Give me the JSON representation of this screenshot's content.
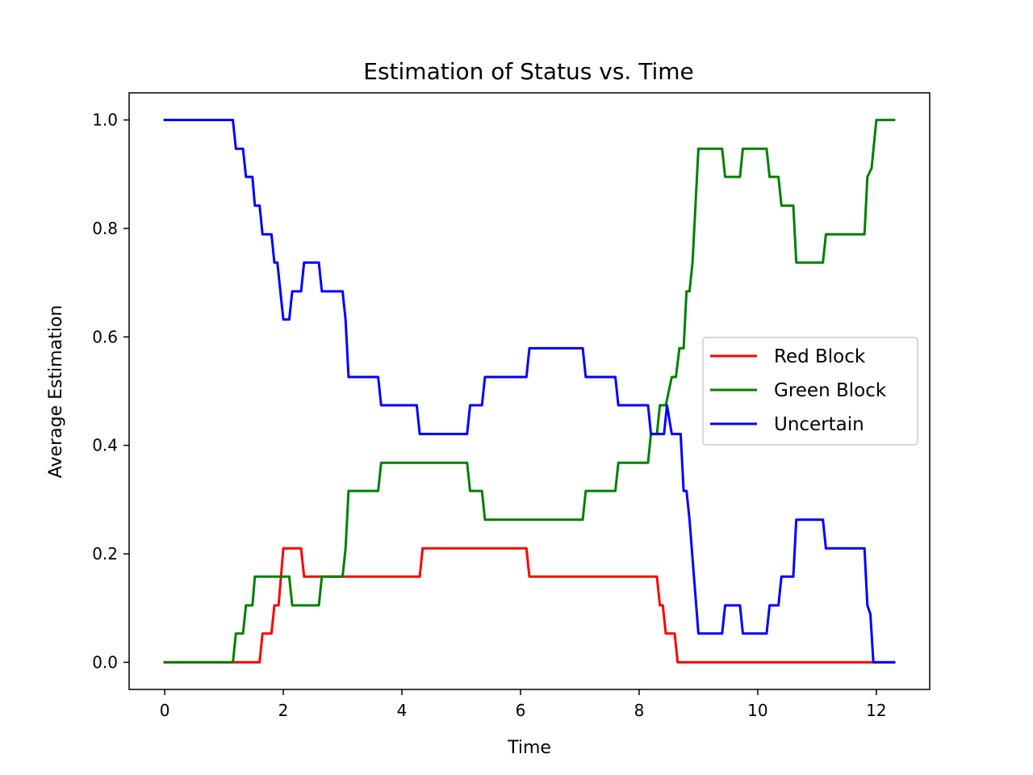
{
  "chart_data": {
    "type": "line",
    "title": "Estimation of Status vs. Time",
    "xlabel": "Time",
    "ylabel": "Average Estimation",
    "xlim": [
      -0.6,
      12.9
    ],
    "ylim": [
      -0.05,
      1.05
    ],
    "xticks": [
      0,
      2,
      4,
      6,
      8,
      10,
      12
    ],
    "yticks": [
      0.0,
      0.2,
      0.4,
      0.6,
      0.8,
      1.0
    ],
    "xtick_labels": [
      "0",
      "2",
      "4",
      "6",
      "8",
      "10",
      "12"
    ],
    "ytick_labels": [
      "0.0",
      "0.2",
      "0.4",
      "0.6",
      "0.8",
      "1.0"
    ],
    "grid": false,
    "legend_position": "center-right",
    "series": [
      {
        "name": "Red Block",
        "color": "#ff0000",
        "points": [
          [
            0,
            0
          ],
          [
            1.6,
            0
          ],
          [
            1.65,
            0.053
          ],
          [
            1.8,
            0.053
          ],
          [
            1.85,
            0.105
          ],
          [
            1.92,
            0.105
          ],
          [
            2.0,
            0.21
          ],
          [
            2.3,
            0.21
          ],
          [
            2.35,
            0.158
          ],
          [
            4.3,
            0.158
          ],
          [
            4.35,
            0.21
          ],
          [
            6.1,
            0.21
          ],
          [
            6.15,
            0.158
          ],
          [
            8.3,
            0.158
          ],
          [
            8.35,
            0.105
          ],
          [
            8.4,
            0.105
          ],
          [
            8.45,
            0.053
          ],
          [
            8.6,
            0.053
          ],
          [
            8.65,
            0
          ],
          [
            12.3,
            0
          ]
        ]
      },
      {
        "name": "Green Block",
        "color": "#008000",
        "points": [
          [
            0,
            0
          ],
          [
            1.15,
            0
          ],
          [
            1.2,
            0.053
          ],
          [
            1.32,
            0.053
          ],
          [
            1.37,
            0.105
          ],
          [
            1.48,
            0.105
          ],
          [
            1.52,
            0.158
          ],
          [
            2.1,
            0.158
          ],
          [
            2.15,
            0.105
          ],
          [
            2.6,
            0.105
          ],
          [
            2.65,
            0.158
          ],
          [
            3.0,
            0.158
          ],
          [
            3.05,
            0.21
          ],
          [
            3.1,
            0.316
          ],
          [
            3.6,
            0.316
          ],
          [
            3.65,
            0.368
          ],
          [
            5.1,
            0.368
          ],
          [
            5.15,
            0.316
          ],
          [
            5.35,
            0.316
          ],
          [
            5.4,
            0.263
          ],
          [
            7.05,
            0.263
          ],
          [
            7.1,
            0.316
          ],
          [
            7.6,
            0.316
          ],
          [
            7.65,
            0.368
          ],
          [
            8.15,
            0.368
          ],
          [
            8.2,
            0.421
          ],
          [
            8.3,
            0.421
          ],
          [
            8.35,
            0.474
          ],
          [
            8.45,
            0.474
          ],
          [
            8.55,
            0.526
          ],
          [
            8.62,
            0.526
          ],
          [
            8.68,
            0.579
          ],
          [
            8.75,
            0.579
          ],
          [
            8.8,
            0.684
          ],
          [
            8.85,
            0.684
          ],
          [
            8.9,
            0.737
          ],
          [
            9.0,
            0.947
          ],
          [
            9.4,
            0.947
          ],
          [
            9.45,
            0.895
          ],
          [
            9.7,
            0.895
          ],
          [
            9.75,
            0.947
          ],
          [
            10.15,
            0.947
          ],
          [
            10.2,
            0.895
          ],
          [
            10.35,
            0.895
          ],
          [
            10.4,
            0.842
          ],
          [
            10.6,
            0.842
          ],
          [
            10.65,
            0.737
          ],
          [
            11.1,
            0.737
          ],
          [
            11.15,
            0.789
          ],
          [
            11.8,
            0.789
          ],
          [
            11.85,
            0.895
          ],
          [
            11.92,
            0.911
          ],
          [
            12.0,
            1.0
          ],
          [
            12.3,
            1.0
          ]
        ]
      },
      {
        "name": "Uncertain",
        "color": "#0000ff",
        "points": [
          [
            0,
            1.0
          ],
          [
            1.15,
            1.0
          ],
          [
            1.2,
            0.947
          ],
          [
            1.32,
            0.947
          ],
          [
            1.37,
            0.895
          ],
          [
            1.48,
            0.895
          ],
          [
            1.52,
            0.842
          ],
          [
            1.6,
            0.842
          ],
          [
            1.65,
            0.789
          ],
          [
            1.8,
            0.789
          ],
          [
            1.85,
            0.737
          ],
          [
            1.9,
            0.737
          ],
          [
            2.0,
            0.632
          ],
          [
            2.1,
            0.632
          ],
          [
            2.15,
            0.684
          ],
          [
            2.3,
            0.684
          ],
          [
            2.35,
            0.737
          ],
          [
            2.6,
            0.737
          ],
          [
            2.65,
            0.684
          ],
          [
            3.0,
            0.684
          ],
          [
            3.05,
            0.632
          ],
          [
            3.1,
            0.526
          ],
          [
            3.6,
            0.526
          ],
          [
            3.65,
            0.474
          ],
          [
            4.25,
            0.474
          ],
          [
            4.3,
            0.421
          ],
          [
            5.1,
            0.421
          ],
          [
            5.15,
            0.474
          ],
          [
            5.35,
            0.474
          ],
          [
            5.4,
            0.526
          ],
          [
            6.1,
            0.526
          ],
          [
            6.15,
            0.579
          ],
          [
            7.05,
            0.579
          ],
          [
            7.1,
            0.526
          ],
          [
            7.6,
            0.526
          ],
          [
            7.65,
            0.474
          ],
          [
            8.15,
            0.474
          ],
          [
            8.2,
            0.421
          ],
          [
            8.42,
            0.421
          ],
          [
            8.47,
            0.474
          ],
          [
            8.55,
            0.421
          ],
          [
            8.7,
            0.421
          ],
          [
            8.75,
            0.316
          ],
          [
            8.8,
            0.316
          ],
          [
            8.85,
            0.263
          ],
          [
            9.0,
            0.053
          ],
          [
            9.4,
            0.053
          ],
          [
            9.45,
            0.105
          ],
          [
            9.7,
            0.105
          ],
          [
            9.75,
            0.053
          ],
          [
            10.15,
            0.053
          ],
          [
            10.2,
            0.105
          ],
          [
            10.35,
            0.105
          ],
          [
            10.4,
            0.158
          ],
          [
            10.6,
            0.158
          ],
          [
            10.65,
            0.263
          ],
          [
            11.1,
            0.263
          ],
          [
            11.15,
            0.21
          ],
          [
            11.8,
            0.21
          ],
          [
            11.85,
            0.105
          ],
          [
            11.9,
            0.089
          ],
          [
            11.95,
            0
          ],
          [
            12.3,
            0
          ]
        ]
      }
    ]
  }
}
